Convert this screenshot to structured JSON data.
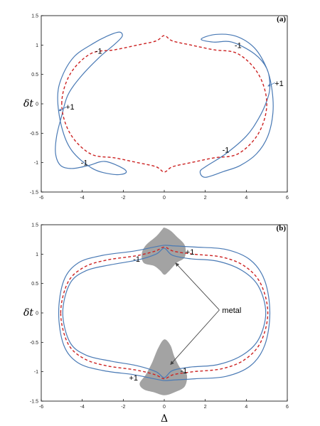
{
  "chart_data": [
    {
      "type": "line",
      "panel_label": "(a)",
      "xlabel": "",
      "ylabel": "δt",
      "xlim": [
        -6,
        6
      ],
      "ylim": [
        -1.5,
        1.5
      ],
      "x_ticks": [
        "-6",
        "-4",
        "-2",
        "0",
        "2",
        "4",
        "6"
      ],
      "y_ticks": [
        "-1.5",
        "-1",
        "-0.5",
        "0",
        "0.5",
        "1",
        "1.5"
      ],
      "grid": false,
      "series": [
        {
          "style": "solid",
          "color": "#4a7ab5",
          "x": [
            -5.2,
            -5.0,
            -4.4,
            -3.5,
            -2.8,
            -2.2,
            -2.05,
            -2.4,
            -3.2,
            -4.1,
            -4.7,
            -5.0,
            -5.25,
            -5.3,
            -5.05,
            -4.5,
            -3.7,
            -2.9,
            -2.0,
            -1.9,
            -2.5,
            -3.5,
            -4.5,
            -5.0,
            -5.2
          ],
          "y": [
            0.1,
            0.45,
            0.8,
            1.02,
            1.15,
            1.22,
            1.15,
            1.02,
            0.78,
            0.45,
            0.15,
            -0.2,
            -0.55,
            -0.85,
            -1.05,
            -1.1,
            -1.05,
            -0.98,
            -1.1,
            -1.18,
            -1.2,
            -1.1,
            -0.8,
            -0.4,
            0.1
          ]
        },
        {
          "style": "solid",
          "color": "#4a7ab5",
          "x": [
            1.8,
            2.5,
            3.5,
            4.4,
            5.0,
            5.25,
            5.3,
            5.05,
            4.5,
            3.7,
            2.9,
            2.0,
            1.75,
            2.1,
            3.0,
            4.0,
            4.6,
            5.0,
            5.15,
            5.0,
            4.4,
            3.3,
            2.4,
            1.8
          ],
          "y": [
            1.1,
            1.18,
            1.15,
            0.95,
            0.6,
            0.25,
            -0.15,
            -0.55,
            -0.85,
            -1.05,
            -1.15,
            -1.25,
            -1.15,
            -1.05,
            -0.85,
            -0.55,
            -0.25,
            0.05,
            0.3,
            0.6,
            0.85,
            1.05,
            1.05,
            1.1
          ]
        },
        {
          "style": "dashed",
          "color": "#cc2222",
          "x": [
            -5.0,
            -4.6,
            -3.6,
            -2.4,
            -1.3,
            -0.4,
            0.0,
            0.4,
            1.3,
            2.4,
            3.6,
            4.6,
            5.0,
            4.6,
            3.6,
            2.4,
            1.3,
            0.4,
            0.0,
            -0.4,
            -1.3,
            -2.4,
            -3.6,
            -4.6,
            -5.0
          ],
          "y": [
            0.0,
            0.5,
            0.85,
            0.92,
            1.0,
            1.07,
            1.16,
            1.07,
            1.0,
            0.92,
            0.85,
            0.5,
            0.0,
            -0.5,
            -0.85,
            -0.92,
            -1.0,
            -1.07,
            -1.16,
            -1.07,
            -1.0,
            -0.92,
            -0.85,
            -0.5,
            0.0
          ]
        }
      ],
      "annotations": [
        {
          "text": "-1",
          "x": -3.2,
          "y": 0.9
        },
        {
          "text": "-1",
          "x": 3.6,
          "y": 1.0
        },
        {
          "text": "+1",
          "x": 5.6,
          "y": 0.35
        },
        {
          "text": "+1",
          "x": -4.6,
          "y": -0.05
        },
        {
          "text": "-1",
          "x": -3.9,
          "y": -1.0
        },
        {
          "text": "-1",
          "x": 3.0,
          "y": -0.78
        }
      ]
    },
    {
      "type": "line",
      "panel_label": "(b)",
      "xlabel": "Δ",
      "ylabel": "δt",
      "xlim": [
        -6,
        6
      ],
      "ylim": [
        -1.5,
        1.5
      ],
      "x_ticks": [
        "-6",
        "-4",
        "-2",
        "0",
        "2",
        "4",
        "6"
      ],
      "y_ticks": [
        "-1.5",
        "-1",
        "-0.5",
        "0",
        "0.5",
        "1",
        "1.5"
      ],
      "grid": false,
      "series": [
        {
          "style": "solid",
          "color": "#4a7ab5",
          "x": [
            -5.15,
            -4.9,
            -4.2,
            -3.0,
            -1.5,
            -0.5,
            0.0,
            0.5,
            1.5,
            3.0,
            4.2,
            4.9,
            5.15,
            4.9,
            4.2,
            3.0,
            1.5,
            0.5,
            0.0,
            -0.5,
            -1.5,
            -3.0,
            -4.2,
            -4.9,
            -5.15
          ],
          "y": [
            0.0,
            0.55,
            0.85,
            0.98,
            1.05,
            1.12,
            1.15,
            1.14,
            1.12,
            1.08,
            0.9,
            0.55,
            0.0,
            -0.55,
            -0.9,
            -1.08,
            -1.12,
            -1.14,
            -1.15,
            -1.12,
            -1.05,
            -0.98,
            -0.85,
            -0.55,
            0.0
          ]
        },
        {
          "style": "solid",
          "color": "#4a7ab5",
          "x": [
            -4.95,
            -4.6,
            -3.8,
            -2.6,
            -1.3,
            -0.4,
            0.0,
            0.4,
            1.3,
            2.6,
            3.8,
            4.6,
            4.95,
            4.6,
            3.8,
            2.6,
            1.3,
            0.4,
            0.0,
            -0.4,
            -1.3,
            -2.6,
            -3.8,
            -4.6,
            -4.95
          ],
          "y": [
            0.0,
            0.5,
            0.72,
            0.82,
            0.9,
            1.0,
            1.1,
            0.98,
            0.92,
            0.88,
            0.72,
            0.45,
            0.0,
            -0.45,
            -0.72,
            -0.88,
            -0.92,
            -0.98,
            -1.1,
            -1.0,
            -0.9,
            -0.82,
            -0.72,
            -0.5,
            0.0
          ]
        },
        {
          "style": "dashed",
          "color": "#cc2222",
          "x": [
            -5.05,
            -4.7,
            -3.9,
            -2.8,
            -1.4,
            -0.45,
            0.0,
            0.45,
            1.4,
            2.8,
            3.9,
            4.7,
            5.05,
            4.7,
            3.9,
            2.8,
            1.4,
            0.45,
            0.0,
            -0.45,
            -1.4,
            -2.8,
            -3.9,
            -4.7,
            -5.05
          ],
          "y": [
            0.0,
            0.52,
            0.78,
            0.9,
            0.97,
            1.05,
            1.12,
            1.05,
            1.0,
            0.95,
            0.8,
            0.5,
            0.0,
            -0.5,
            -0.8,
            -0.95,
            -1.0,
            -1.05,
            -1.12,
            -1.05,
            -0.97,
            -0.9,
            -0.78,
            -0.52,
            0.0
          ]
        }
      ],
      "shaded_regions": [
        {
          "color": "#9e9e9e",
          "x": [
            0.0,
            0.3,
            0.6,
            1.0,
            1.0,
            0.6,
            0.2,
            0.0,
            -0.2,
            -0.5,
            -1.0,
            -1.1,
            -0.9,
            -0.4,
            -0.1,
            0.0
          ],
          "y": [
            1.45,
            1.4,
            1.3,
            1.15,
            0.95,
            0.85,
            0.7,
            0.65,
            0.72,
            0.8,
            0.85,
            1.0,
            1.15,
            1.3,
            1.42,
            1.45
          ]
        },
        {
          "color": "#9e9e9e",
          "x": [
            0.0,
            0.3,
            0.5,
            0.8,
            1.1,
            1.0,
            0.5,
            0.0,
            -0.5,
            -1.0,
            -1.2,
            -0.9,
            -0.6,
            -0.3,
            0.0
          ],
          "y": [
            -0.45,
            -0.55,
            -0.75,
            -0.95,
            -1.05,
            -1.25,
            -1.35,
            -1.4,
            -1.35,
            -1.3,
            -1.2,
            -1.05,
            -0.85,
            -0.6,
            -0.45
          ]
        }
      ],
      "annotations": [
        {
          "text": "-1",
          "x": -1.35,
          "y": 0.92
        },
        {
          "text": "+1",
          "x": 1.25,
          "y": 1.04
        },
        {
          "text": "+1",
          "x": -1.5,
          "y": -1.1
        },
        {
          "text": "-1",
          "x": 0.95,
          "y": -0.98
        }
      ],
      "callout": {
        "text": "metal",
        "anchor": {
          "x": 2.2,
          "y": 0.05
        },
        "arrows_to": [
          {
            "x": 0.55,
            "y": 0.85
          },
          {
            "x": 0.3,
            "y": -0.88
          }
        ]
      }
    }
  ]
}
